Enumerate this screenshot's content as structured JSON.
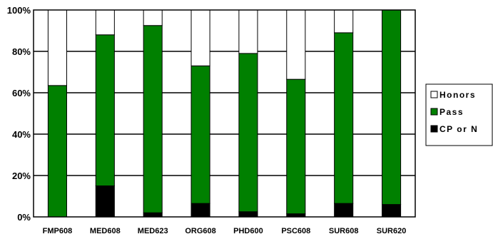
{
  "chart_data": {
    "type": "bar",
    "stacked": true,
    "percent": true,
    "categories": [
      "FMP608",
      "MED608",
      "MED623",
      "ORG608",
      "PHD600",
      "PSC608",
      "SUR608",
      "SUR620"
    ],
    "series": [
      {
        "name": "CP or N",
        "color": "#000000",
        "values": [
          0,
          15,
          2,
          6.5,
          2.5,
          1.5,
          6.5,
          6
        ]
      },
      {
        "name": "Pass",
        "color": "#008000",
        "values": [
          63.5,
          73,
          90.5,
          66.5,
          76.5,
          65,
          82.5,
          94
        ]
      },
      {
        "name": "Honors",
        "color": "#ffffff",
        "values": [
          36.5,
          12,
          7.5,
          27,
          21,
          33.5,
          11,
          0
        ]
      }
    ],
    "legend_order": [
      "Honors",
      "Pass",
      "CP or N"
    ],
    "y_ticks": [
      "0%",
      "20%",
      "40%",
      "60%",
      "80%",
      "100%"
    ],
    "ylim": [
      0,
      100
    ],
    "grid": true,
    "legend_position": "right"
  }
}
